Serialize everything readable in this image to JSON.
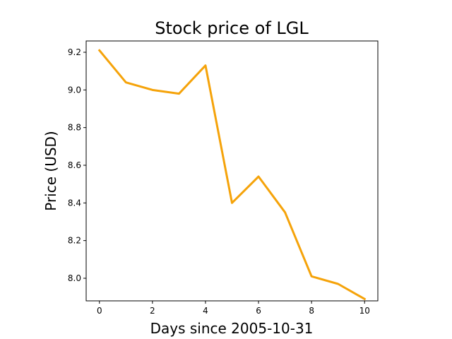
{
  "chart_data": {
    "type": "line",
    "title": "Stock price of LGL",
    "xlabel": "Days since 2005-10-31",
    "ylabel": "Price (USD)",
    "xlim": [
      -0.5,
      10.5
    ],
    "ylim": [
      7.88,
      9.26
    ],
    "x_ticks": [
      0,
      2,
      4,
      6,
      8,
      10
    ],
    "y_ticks": [
      8.0,
      8.2,
      8.4,
      8.6,
      8.8,
      9.0,
      9.2
    ],
    "y_tick_labels": [
      "8.0",
      "8.2",
      "8.4",
      "8.6",
      "8.8",
      "9.0",
      "9.2"
    ],
    "grid": false,
    "series": [
      {
        "color": "#f5a30a",
        "x": [
          0,
          1,
          2,
          3,
          4,
          5,
          6,
          7,
          8,
          9,
          10
        ],
        "y": [
          9.21,
          9.04,
          9.0,
          8.98,
          9.13,
          8.4,
          8.54,
          8.35,
          8.01,
          7.97,
          7.89
        ]
      }
    ]
  }
}
